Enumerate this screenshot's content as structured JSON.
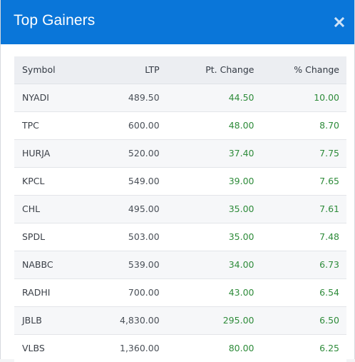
{
  "modal": {
    "title": "Top Gainers",
    "close_icon": "close-x-icon"
  },
  "colors": {
    "header_bg": "#0a76d9",
    "positive": "#2e8b3a"
  },
  "table": {
    "headers": {
      "symbol": "Symbol",
      "ltp": "LTP",
      "pt_change": "Pt. Change",
      "pct_change": "% Change"
    },
    "rows": [
      {
        "symbol": "NYADI",
        "ltp": "489.50",
        "pt_change": "44.50",
        "pct_change": "10.00"
      },
      {
        "symbol": "TPC",
        "ltp": "600.00",
        "pt_change": "48.00",
        "pct_change": "8.70"
      },
      {
        "symbol": "HURJA",
        "ltp": "520.00",
        "pt_change": "37.40",
        "pct_change": "7.75"
      },
      {
        "symbol": "KPCL",
        "ltp": "549.00",
        "pt_change": "39.00",
        "pct_change": "7.65"
      },
      {
        "symbol": "CHL",
        "ltp": "495.00",
        "pt_change": "35.00",
        "pct_change": "7.61"
      },
      {
        "symbol": "SPDL",
        "ltp": "503.00",
        "pt_change": "35.00",
        "pct_change": "7.48"
      },
      {
        "symbol": "NABBC",
        "ltp": "539.00",
        "pt_change": "34.00",
        "pct_change": "6.73"
      },
      {
        "symbol": "RADHI",
        "ltp": "700.00",
        "pt_change": "43.00",
        "pct_change": "6.54"
      },
      {
        "symbol": "JBLB",
        "ltp": "4,830.00",
        "pt_change": "295.00",
        "pct_change": "6.50"
      },
      {
        "symbol": "VLBS",
        "ltp": "1,360.00",
        "pt_change": "80.00",
        "pct_change": "6.25"
      }
    ]
  }
}
